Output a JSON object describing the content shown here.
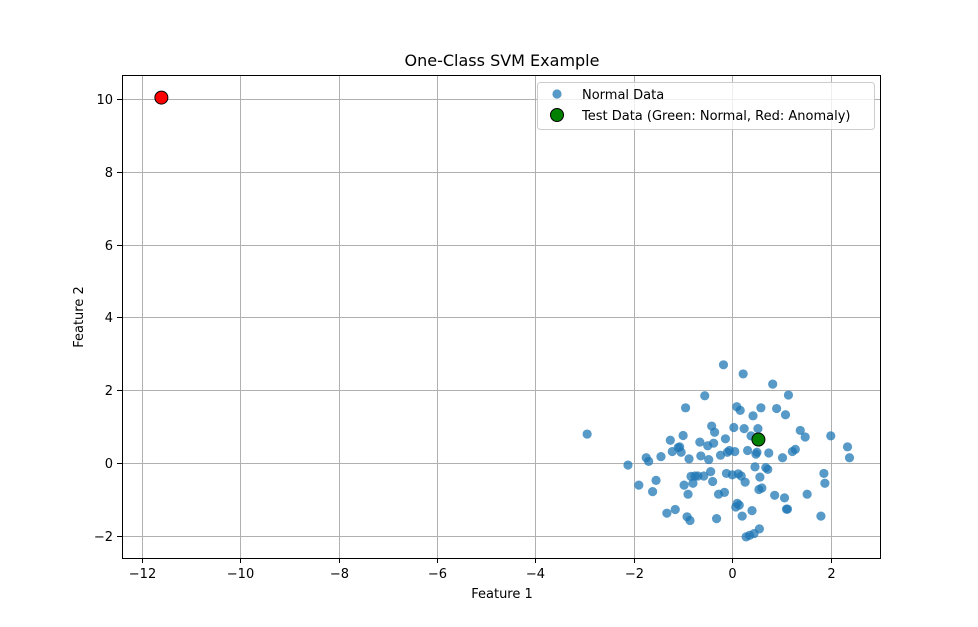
{
  "chart_data": {
    "type": "scatter",
    "title": "One-Class SVM Example",
    "xlabel": "Feature 1",
    "ylabel": "Feature 2",
    "xlim": [
      -12.4,
      3.0
    ],
    "ylim": [
      -2.6,
      10.65
    ],
    "x_ticks": [
      -12,
      -10,
      -8,
      -6,
      -4,
      -2,
      0,
      2
    ],
    "x_tick_labels": [
      "−12",
      "−10",
      "−8",
      "−6",
      "−4",
      "−2",
      "0",
      "2"
    ],
    "y_ticks": [
      -2,
      0,
      2,
      4,
      6,
      8,
      10
    ],
    "y_tick_labels": [
      "−2",
      "0",
      "2",
      "4",
      "6",
      "8",
      "10"
    ],
    "grid": true,
    "legend_position": "top-right",
    "series": [
      {
        "name": "Normal Data",
        "color": "#1f77b4",
        "points": [
          [
            -2.95,
            0.8
          ],
          [
            -2.12,
            -0.05
          ],
          [
            -1.9,
            -0.6
          ],
          [
            -1.75,
            0.15
          ],
          [
            -1.7,
            0.05
          ],
          [
            -1.62,
            -0.78
          ],
          [
            -1.55,
            -0.47
          ],
          [
            -1.45,
            0.18
          ],
          [
            -1.33,
            -1.37
          ],
          [
            -1.26,
            0.63
          ],
          [
            -1.22,
            0.32
          ],
          [
            -1.16,
            -1.27
          ],
          [
            -1.1,
            0.43
          ],
          [
            -1.07,
            0.45
          ],
          [
            -1.04,
            0.3
          ],
          [
            -1.0,
            0.76
          ],
          [
            -0.98,
            -0.6
          ],
          [
            -0.95,
            1.52
          ],
          [
            -0.92,
            -1.47
          ],
          [
            -0.9,
            -0.85
          ],
          [
            -0.88,
            0.12
          ],
          [
            -0.86,
            -1.57
          ],
          [
            -0.84,
            -0.36
          ],
          [
            -0.8,
            -0.55
          ],
          [
            -0.76,
            -0.35
          ],
          [
            -0.7,
            -0.35
          ],
          [
            -0.66,
            0.58
          ],
          [
            -0.64,
            0.2
          ],
          [
            -0.58,
            -0.35
          ],
          [
            -0.56,
            1.85
          ],
          [
            -0.5,
            0.48
          ],
          [
            -0.48,
            0.1
          ],
          [
            -0.44,
            -0.23
          ],
          [
            -0.42,
            1.02
          ],
          [
            -0.4,
            -0.5
          ],
          [
            -0.38,
            0.55
          ],
          [
            -0.36,
            0.85
          ],
          [
            -0.32,
            -1.52
          ],
          [
            -0.28,
            -0.85
          ],
          [
            -0.24,
            0.22
          ],
          [
            -0.18,
            2.7
          ],
          [
            -0.16,
            -0.8
          ],
          [
            -0.14,
            0.67
          ],
          [
            -0.12,
            -0.28
          ],
          [
            -0.1,
            0.3
          ],
          [
            -0.06,
            0.35
          ],
          [
            0.0,
            -0.32
          ],
          [
            0.03,
            0.98
          ],
          [
            0.05,
            0.32
          ],
          [
            0.07,
            -1.2
          ],
          [
            0.09,
            1.55
          ],
          [
            0.1,
            -1.1
          ],
          [
            0.12,
            -0.29
          ],
          [
            0.14,
            -1.15
          ],
          [
            0.16,
            1.45
          ],
          [
            0.18,
            -0.35
          ],
          [
            0.2,
            -1.45
          ],
          [
            0.22,
            2.45
          ],
          [
            0.24,
            0.95
          ],
          [
            0.26,
            -0.52
          ],
          [
            0.28,
            -2.02
          ],
          [
            0.31,
            0.35
          ],
          [
            0.35,
            -1.98
          ],
          [
            0.38,
            0.75
          ],
          [
            0.4,
            -1.3
          ],
          [
            0.42,
            1.3
          ],
          [
            0.44,
            -1.93
          ],
          [
            0.46,
            -0.1
          ],
          [
            0.48,
            0.25
          ],
          [
            0.5,
            0.3
          ],
          [
            0.52,
            0.95
          ],
          [
            0.54,
            -0.72
          ],
          [
            0.55,
            -1.8
          ],
          [
            0.56,
            -0.38
          ],
          [
            0.58,
            1.52
          ],
          [
            0.6,
            -0.68
          ],
          [
            0.68,
            -0.12
          ],
          [
            0.72,
            -0.17
          ],
          [
            0.74,
            0.28
          ],
          [
            0.82,
            2.17
          ],
          [
            0.86,
            -0.88
          ],
          [
            0.9,
            1.5
          ],
          [
            1.02,
            0.15
          ],
          [
            1.06,
            -0.95
          ],
          [
            1.08,
            1.33
          ],
          [
            1.1,
            -1.26
          ],
          [
            1.12,
            -1.26
          ],
          [
            1.14,
            1.87
          ],
          [
            1.22,
            0.32
          ],
          [
            1.28,
            0.38
          ],
          [
            1.38,
            0.9
          ],
          [
            1.48,
            0.72
          ],
          [
            1.52,
            -0.85
          ],
          [
            1.8,
            -1.45
          ],
          [
            1.86,
            -0.28
          ],
          [
            1.88,
            -0.55
          ],
          [
            2.0,
            0.75
          ],
          [
            2.34,
            0.45
          ],
          [
            2.38,
            0.15
          ]
        ]
      },
      {
        "name": "Test Data (Green: Normal, Red: Anomaly)",
        "points": [
          {
            "x": 0.53,
            "y": 0.65,
            "label": "Normal",
            "color": "#008000"
          },
          {
            "x": -11.6,
            "y": 10.03,
            "label": "Anomaly",
            "color": "#ff0000"
          }
        ]
      }
    ]
  }
}
